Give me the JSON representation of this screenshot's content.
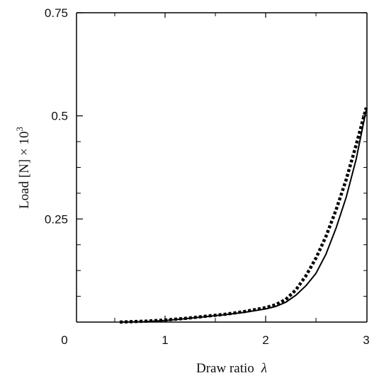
{
  "chart_data": {
    "type": "line",
    "title": "",
    "xlabel": "Draw ratio",
    "xlabel_symbol": "λ",
    "ylabel": "Load [N] × 10",
    "ylabel_exponent": "3",
    "xlim": [
      0,
      3
    ],
    "ylim": [
      0,
      0.75
    ],
    "grid": false,
    "legend": "none",
    "x_ticks": [
      0,
      1,
      2,
      3
    ],
    "x_tick_labels": [
      "0",
      "1",
      "2",
      "3"
    ],
    "y_ticks": [
      0.25,
      0.5,
      0.75
    ],
    "y_tick_labels": [
      "0.25",
      "0.5",
      "0.75"
    ],
    "series": [
      {
        "style": "solid",
        "color": "#000000",
        "x": [
          0.55,
          0.8,
          1.0,
          1.2,
          1.4,
          1.6,
          1.8,
          2.0,
          2.1,
          2.2,
          2.3,
          2.4,
          2.5,
          2.6,
          2.7,
          2.8,
          2.9,
          3.0
        ],
        "y": [
          0.0,
          0.001,
          0.004,
          0.008,
          0.013,
          0.018,
          0.024,
          0.032,
          0.038,
          0.048,
          0.065,
          0.088,
          0.118,
          0.165,
          0.228,
          0.302,
          0.395,
          0.515
        ]
      },
      {
        "style": "dotted",
        "color": "#000000",
        "x": [
          0.55,
          0.8,
          1.0,
          1.2,
          1.4,
          1.6,
          1.8,
          2.0,
          2.1,
          2.2,
          2.3,
          2.4,
          2.5,
          2.6,
          2.7,
          2.8,
          2.9,
          3.0
        ],
        "y": [
          0.0,
          0.002,
          0.005,
          0.009,
          0.014,
          0.019,
          0.026,
          0.035,
          0.042,
          0.055,
          0.078,
          0.112,
          0.155,
          0.208,
          0.272,
          0.345,
          0.43,
          0.52
        ]
      }
    ]
  }
}
